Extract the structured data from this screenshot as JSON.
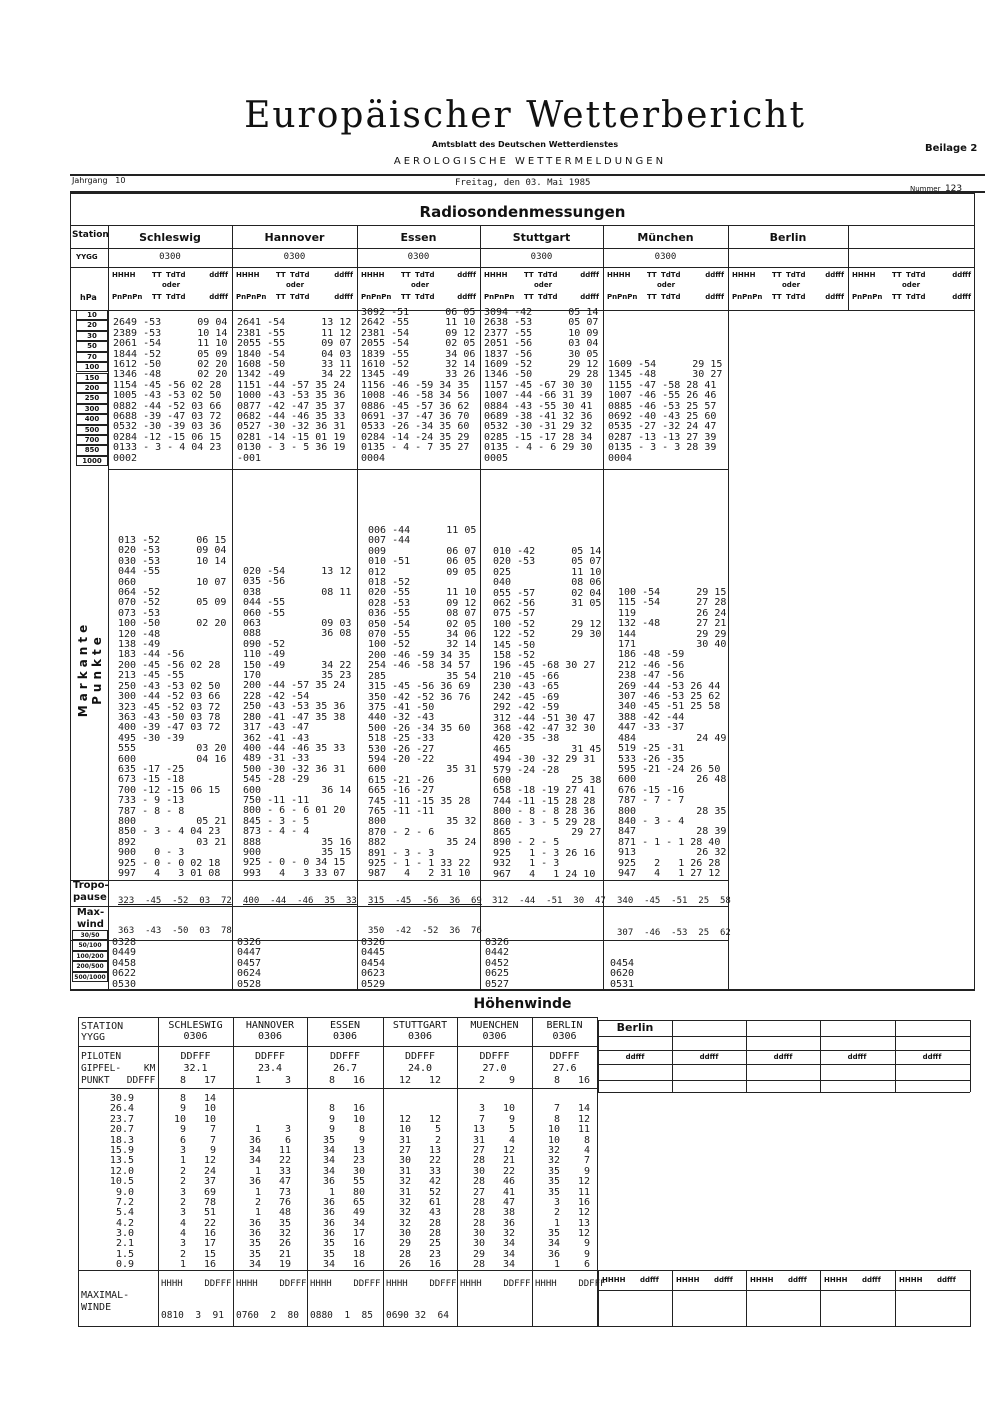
{
  "header": {
    "title": "Europäischer Wetterbericht",
    "subtitle": "Amtsblatt des Deutschen Wetterdienstes",
    "section": "AEROLOGISCHE WETTERMELDUNGEN",
    "beilage": "Beilage 2",
    "jahrgang_label": "Jahrgang",
    "jahrgang": "10",
    "date": "Freitag, den 03. Mai 1985",
    "nummer_label": "Nummer",
    "nummer": "123"
  },
  "radiosonde": {
    "title": "Radiosondenmessungen",
    "station_label": "Station",
    "yygg_label": "YYGG",
    "hpa_label": "hPa",
    "col_header": {
      "hhhh": "HHHH",
      "tt": "TT",
      "tdtd": "TdTd",
      "ddfff": "ddfff",
      "oder": "oder",
      "pn": "PnPnPn"
    },
    "stations": [
      {
        "name": "Schleswig",
        "yygg": "0300"
      },
      {
        "name": "Hannover",
        "yygg": "0300"
      },
      {
        "name": "Essen",
        "yygg": "0300"
      },
      {
        "name": "Stuttgart",
        "yygg": "0300"
      },
      {
        "name": "München",
        "yygg": "0300"
      },
      {
        "name": "Berlin",
        "yygg": ""
      },
      {
        "name": "",
        "yygg": ""
      }
    ],
    "levels": [
      "10",
      "20",
      "30",
      "50",
      "70",
      "100",
      "150",
      "200",
      "250",
      "300",
      "400",
      "500",
      "700",
      "850",
      "1000"
    ],
    "standard": {
      "schleswig": [
        "",
        "2649 -53      09 04",
        "2389 -53      10 14",
        "2061 -54      11 10",
        "1844 -52      05 09",
        "1612 -50      02 20",
        "1346 -48      02 20",
        "1154 -45 -56 02 28",
        "1005 -43 -53 02 50",
        "0882 -44 -52 03 66",
        "0688 -39 -47 03 72",
        "0532 -30 -39 03 36",
        "0284 -12 -15 06 15",
        "0133 - 3 - 4 04 23",
        "0002"
      ],
      "hannover": [
        "",
        "2641 -54      13 12",
        "2381 -55      11 12",
        "2055 -55      09 07",
        "1840 -54      04 03",
        "1608 -50      33 11",
        "1342 -49      34 22",
        "1151 -44 -57 35 24",
        "1000 -43 -53 35 36",
        "0877 -42 -47 35 37",
        "0682 -44 -46 35 33",
        "0527 -30 -32 36 31",
        "0281 -14 -15 01 19",
        "0130 - 3 - 5 36 19",
        "-001"
      ],
      "essen": [
        "3092 -51      06 05",
        "2642 -55      11 10",
        "2381 -54      09 12",
        "2055 -54      02 05",
        "1839 -55      34 06",
        "1610 -52      32 14",
        "1345 -49      33 26",
        "1156 -46 -59 34 35",
        "1008 -46 -58 34 56",
        "0886 -45 -57 36 62",
        "0691 -37 -47 36 70",
        "0533 -26 -34 35 60",
        "0284 -14 -24 35 29",
        "0135 - 4 - 7 35 27",
        "0004"
      ],
      "stuttgart": [
        "3094 -42      05 14",
        "2638 -53      05 07",
        "2377 -55      10 09",
        "2051 -56      03 04",
        "1837 -56      30 05",
        "1609 -52      29 12",
        "1346 -50      29 28",
        "1157 -45 -67 30 30",
        "1007 -44 -66 31 39",
        "0884 -43 -55 30 41",
        "0689 -38 -41 32 36",
        "0532 -30 -31 29 32",
        "0285 -15 -17 28 34",
        "0135 - 4 - 6 29 30",
        "0005"
      ],
      "muenchen": [
        "",
        "",
        "",
        "",
        "",
        "1609 -54      29 15",
        "1345 -48      30 27",
        "1155 -47 -58 28 41",
        "1007 -46 -55 26 46",
        "0885 -46 -53 25 57",
        "0692 -40 -43 25 60",
        "0535 -27 -32 24 47",
        "0287 -13 -13 27 39",
        "0135 - 3 - 3 28 39",
        "0004"
      ]
    },
    "markante_label": "Markante Punkte",
    "significant": {
      "schleswig": [
        "013 -52      06 15",
        "020 -53      09 04",
        "030 -53      10 14",
        "044 -55",
        "060          10 07",
        "064 -52",
        "070 -52      05 09",
        "073 -53",
        "100 -50      02 20",
        "120 -48",
        "138 -49",
        "183 -44 -56",
        "200 -45 -56 02 28",
        "213 -45 -55",
        "250 -43 -53 02 50",
        "300 -44 -52 03 66",
        "323 -45 -52 03 72",
        "363 -43 -50 03 78",
        "400 -39 -47 03 72",
        "495 -30 -39",
        "555          03 20",
        "600          04 16",
        "635 -17 -25",
        "673 -15 -18",
        "700 -12 -15 06 15",
        "733 - 9 -13",
        "787 - 8 - 8",
        "800          05 21",
        "850 - 3 - 4 04 23",
        "892          03 21",
        "900   0 - 3",
        "925 - 0 - 0 02 18",
        "997   4   3 01 08"
      ],
      "hannover": [
        "020 -54      13 12",
        "035 -56",
        "038          08 11",
        "044 -55",
        "060 -55",
        "063          09 03",
        "088          36 08",
        "090 -52",
        "110 -49",
        "150 -49      34 22",
        "170          35 23",
        "200 -44 -57 35 24",
        "228 -42 -54",
        "250 -43 -53 35 36",
        "280 -41 -47 35 38",
        "317 -43 -47",
        "362 -41 -43",
        "400 -44 -46 35 33",
        "489 -31 -33",
        "500 -30 -32 36 31",
        "545 -28 -29",
        "600          36 14",
        "750 -11 -11",
        "800 - 6 - 6 01 20",
        "845 - 3 - 5",
        "873 - 4 - 4",
        "888          35 16",
        "900          35 15",
        "925 - 0 - 0 34 15",
        "993   4   3 33 07"
      ],
      "essen": [
        "006 -44      11 05",
        "007 -44",
        "009          06 07",
        "010 -51      06 05",
        "012          09 05",
        "018 -52",
        "020 -55      11 10",
        "028 -53      09 12",
        "036 -55      08 07",
        "050 -54      02 05",
        "070 -55      34 06",
        "100 -52      32 14",
        "200 -46 -59 34 35",
        "254 -46 -58 34 57",
        "285          35 54",
        "315 -45 -56 36 69",
        "350 -42 -52 36 76",
        "375 -41 -50",
        "440 -32 -43",
        "500 -26 -34 35 60",
        "518 -25 -33",
        "530 -26 -27",
        "594 -20 -22",
        "600          35 31",
        "615 -21 -26",
        "665 -16 -27",
        "745 -11 -15 35 28",
        "765 -11 -11",
        "800          35 32",
        "870 - 2 - 6",
        "882          35 24",
        "891 - 3 - 3",
        "925 - 1 - 1 33 22",
        "987   4   2 31 10"
      ],
      "stuttgart": [
        "010 -42      05 14",
        "020 -53      05 07",
        "025          11 10",
        "040          08 06",
        "055 -57      02 04",
        "062 -56      31 05",
        "075 -57",
        "100 -52      29 12",
        "122 -52      29 30",
        "145 -50",
        "158 -52",
        "196 -45 -68 30 27",
        "210 -45 -66",
        "230 -43 -65",
        "242 -45 -69",
        "292 -42 -59",
        "312 -44 -51 30 47",
        "368 -42 -47 32 30",
        "420 -35 -38",
        "465          31 45",
        "494 -30 -32 29 31",
        "579 -24 -28",
        "600          25 38",
        "658 -18 -19 27 41",
        "744 -11 -15 28 28",
        "800 - 8 - 8 28 36",
        "860 - 3 - 5 29 28",
        "865          29 27",
        "890 - 2 - 5",
        "925   1 - 3 26 16",
        "932   1 - 3",
        "967   4   1 24 10"
      ],
      "muenchen": [
        "100 -54      29 15",
        "115 -54      27 28",
        "119          26 24",
        "132 -48      27 21",
        "144          29 29",
        "171          30 40",
        "186 -48 -59",
        "212 -46 -56",
        "238 -47 -56",
        "269 -44 -53 26 44",
        "307 -46 -53 25 62",
        "340 -45 -51 25 58",
        "388 -42 -44",
        "447 -33 -37",
        "484          24 49",
        "519 -25 -31",
        "533 -26 -35",
        "595 -21 -24 26 50",
        "600          26 48",
        "676 -15 -16",
        "787 - 7 - 7",
        "800          28 35",
        "840 - 3 - 4",
        "847          28 39",
        "871 - 1 - 1 28 40",
        "913          26 32",
        "925   2   1 26 28",
        "947   4   1 27 12"
      ]
    },
    "tropopause_label": "Tropo-\npause",
    "maxwind_label": "Max-\nwind",
    "tropopause": {
      "schleswig": "323  -45  -52  03  72",
      "hannover": "400  -44  -46  35  33",
      "essen": "315  -45  -56  36  69",
      "stuttgart": "312  -44  -51  30  47",
      "muenchen": "340  -45  -51  25  58"
    },
    "maxwind": {
      "schleswig": "363  -43  -50  03  78",
      "essen": "350  -42  -52  36  76",
      "muenchen": "307  -46  -53  25  62"
    },
    "thickness_labels": [
      "30/50",
      "50/100",
      "100/200",
      "200/500",
      "500/1000"
    ],
    "thickness": {
      "schleswig": [
        "0328",
        "0449",
        "0458",
        "0622",
        "0530"
      ],
      "hannover": [
        "0326",
        "0447",
        "0457",
        "0624",
        "0528"
      ],
      "essen": [
        "0326",
        "0445",
        "0454",
        "0623",
        "0529"
      ],
      "stuttgart": [
        "0326",
        "0442",
        "0452",
        "0625",
        "0527"
      ],
      "muenchen": [
        "",
        "",
        "0454",
        "0620",
        "0531"
      ]
    }
  },
  "hoehenwinde": {
    "title": "Höhenwinde",
    "station_label": "STATION\nYYGG",
    "piloten_label": "PILOTEN\nGIPFEL-    KM\nPUNKT   DDFFF",
    "stations": [
      {
        "name": "SCHLESWIG",
        "yygg": "0306",
        "ddfff": "DDFFF",
        "km": "32.1",
        "dd": "8",
        "ff": "17"
      },
      {
        "name": "HANNOVER",
        "yygg": "0306",
        "ddfff": "DDFFF",
        "km": "23.4",
        "dd": "1",
        "ff": "3"
      },
      {
        "name": "ESSEN",
        "yygg": "0306",
        "ddfff": "DDFFF",
        "km": "26.7",
        "dd": "8",
        "ff": "16"
      },
      {
        "name": "STUTTGART",
        "yygg": "0306",
        "ddfff": "DDFFF",
        "km": "24.0",
        "dd": "12",
        "ff": "12"
      },
      {
        "name": "MUENCHEN",
        "yygg": "0306",
        "ddfff": "DDFFF",
        "km": "27.0",
        "dd": "2",
        "ff": "9"
      },
      {
        "name": "BERLIN",
        "yygg": "0306",
        "ddfff": "DDFFF",
        "km": "27.6",
        "dd": "8",
        "ff": "16"
      }
    ],
    "levels_km": [
      "30.9",
      "26.4",
      "23.7",
      "20.7",
      "18.3",
      "15.9",
      "13.5",
      "12.0",
      "10.5",
      "9.0",
      "7.2",
      "5.4",
      "4.2",
      "3.0",
      "2.1",
      "1.5",
      "0.9"
    ],
    "winds": {
      "schleswig": [
        [
          "8",
          "14"
        ],
        [
          "9",
          "10"
        ],
        [
          "10",
          "10"
        ],
        [
          "9",
          "7"
        ],
        [
          "6",
          "7"
        ],
        [
          "3",
          "9"
        ],
        [
          "1",
          "12"
        ],
        [
          "2",
          "24"
        ],
        [
          "2",
          "37"
        ],
        [
          "3",
          "69"
        ],
        [
          "2",
          "78"
        ],
        [
          "3",
          "51"
        ],
        [
          "4",
          "22"
        ],
        [
          "4",
          "16"
        ],
        [
          "3",
          "17"
        ],
        [
          "2",
          "15"
        ],
        [
          "1",
          "16"
        ]
      ],
      "hannover": [
        null,
        null,
        null,
        [
          "1",
          "3"
        ],
        [
          "36",
          "6"
        ],
        [
          "34",
          "11"
        ],
        [
          "34",
          "22"
        ],
        [
          "1",
          "33"
        ],
        [
          "36",
          "47"
        ],
        [
          "1",
          "73"
        ],
        [
          "2",
          "76"
        ],
        [
          "1",
          "48"
        ],
        [
          "36",
          "35"
        ],
        [
          "36",
          "32"
        ],
        [
          "35",
          "26"
        ],
        [
          "35",
          "21"
        ],
        [
          "34",
          "19"
        ]
      ],
      "essen": [
        null,
        [
          "8",
          "16"
        ],
        [
          "9",
          "10"
        ],
        [
          "9",
          "8"
        ],
        [
          "35",
          "9"
        ],
        [
          "34",
          "13"
        ],
        [
          "34",
          "23"
        ],
        [
          "34",
          "30"
        ],
        [
          "36",
          "55"
        ],
        [
          "1",
          "80"
        ],
        [
          "36",
          "65"
        ],
        [
          "36",
          "49"
        ],
        [
          "36",
          "34"
        ],
        [
          "36",
          "17"
        ],
        [
          "35",
          "16"
        ],
        [
          "35",
          "18"
        ],
        [
          "34",
          "16"
        ]
      ],
      "stuttgart": [
        null,
        null,
        [
          "12",
          "12"
        ],
        [
          "10",
          "5"
        ],
        [
          "31",
          "2"
        ],
        [
          "27",
          "13"
        ],
        [
          "30",
          "22"
        ],
        [
          "31",
          "33"
        ],
        [
          "32",
          "42"
        ],
        [
          "31",
          "52"
        ],
        [
          "32",
          "61"
        ],
        [
          "32",
          "43"
        ],
        [
          "32",
          "28"
        ],
        [
          "30",
          "28"
        ],
        [
          "29",
          "25"
        ],
        [
          "28",
          "23"
        ],
        [
          "26",
          "16"
        ]
      ],
      "muenchen": [
        null,
        [
          "3",
          "10"
        ],
        [
          "7",
          "9"
        ],
        [
          "13",
          "5"
        ],
        [
          "31",
          "4"
        ],
        [
          "27",
          "12"
        ],
        [
          "28",
          "21"
        ],
        [
          "30",
          "22"
        ],
        [
          "28",
          "46"
        ],
        [
          "27",
          "41"
        ],
        [
          "28",
          "47"
        ],
        [
          "28",
          "38"
        ],
        [
          "28",
          "36"
        ],
        [
          "30",
          "32"
        ],
        [
          "30",
          "34"
        ],
        [
          "29",
          "34"
        ],
        [
          "28",
          "34"
        ]
      ],
      "berlin": [
        null,
        [
          "7",
          "14"
        ],
        [
          "8",
          "12"
        ],
        [
          "10",
          "11"
        ],
        [
          "10",
          "8"
        ],
        [
          "32",
          "4"
        ],
        [
          "32",
          "7"
        ],
        [
          "35",
          "9"
        ],
        [
          "35",
          "12"
        ],
        [
          "35",
          "11"
        ],
        [
          "3",
          "16"
        ],
        [
          "2",
          "12"
        ],
        [
          "1",
          "13"
        ],
        [
          "35",
          "12"
        ],
        [
          "34",
          "9"
        ],
        [
          "36",
          "9"
        ],
        [
          "1",
          "6"
        ]
      ]
    },
    "max_label": "MAXIMAL-\nWINDE",
    "max_header": "HHHH    DDFFF",
    "max_values": [
      "0810  3  91",
      "0760  2  80",
      "0880  1  85",
      "0690 32  64",
      "",
      ""
    ],
    "form": {
      "station": "Berlin",
      "ddfff": "ddfff",
      "hhhh": "HHHH",
      "ddfff2": "ddfff"
    }
  }
}
